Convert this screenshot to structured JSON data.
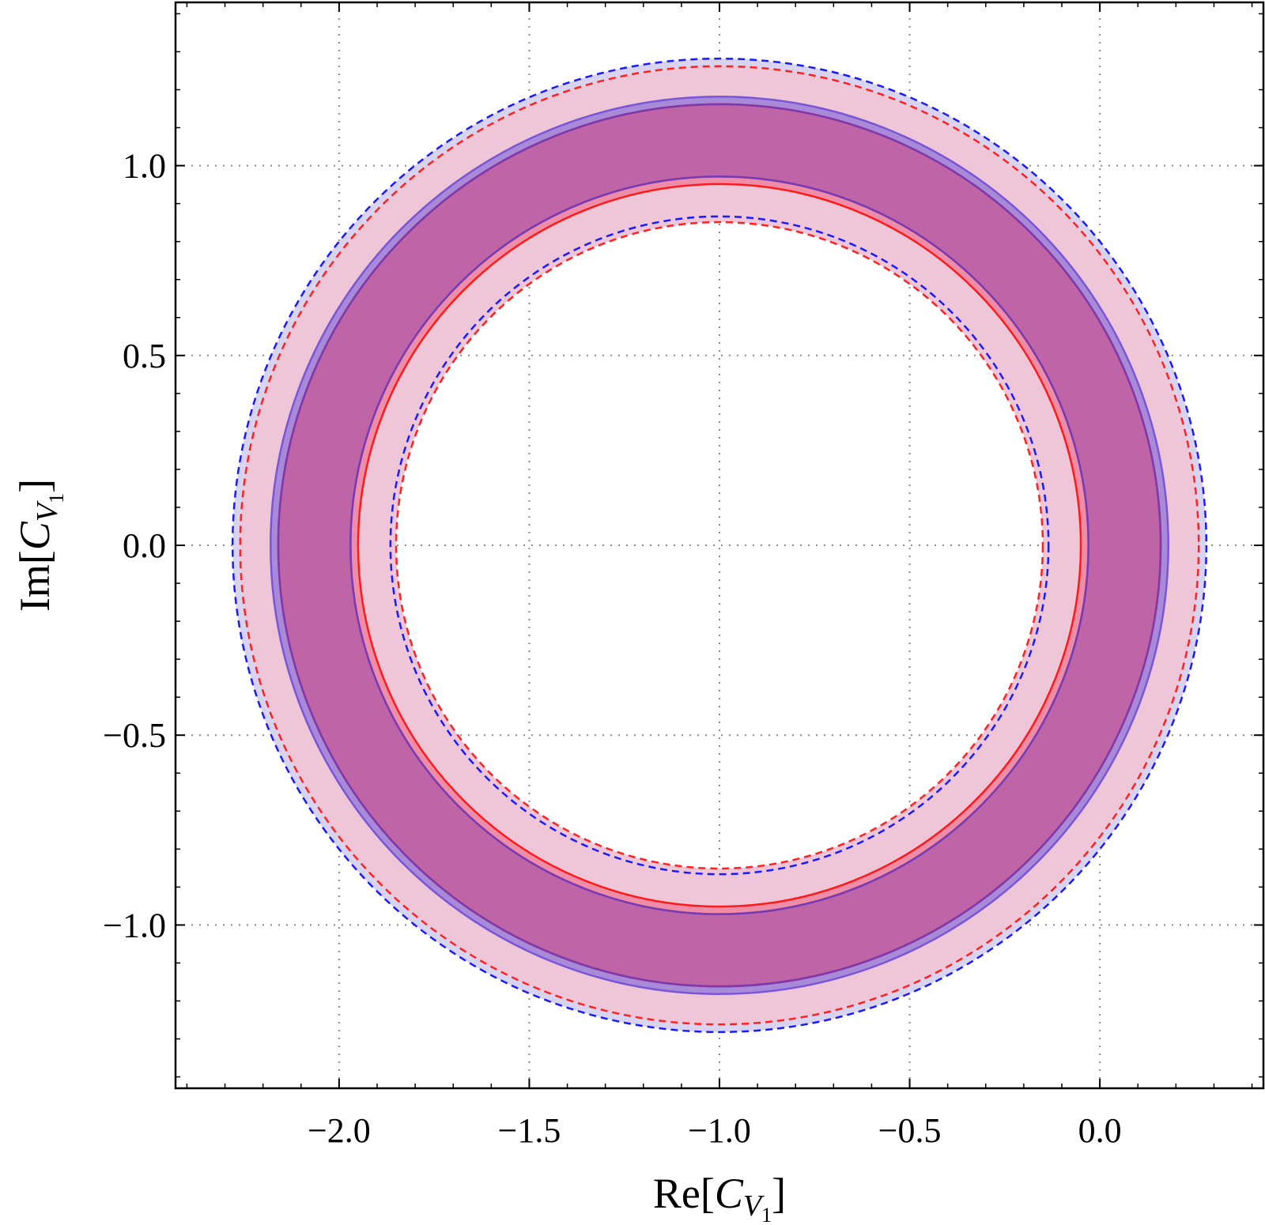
{
  "chart_data": {
    "type": "contour",
    "xlabel": {
      "prefix": "Re[",
      "symbol": "C",
      "sub": "V",
      "subsub": "1",
      "suffix": "]"
    },
    "ylabel": {
      "prefix": "Im[",
      "symbol": "C",
      "sub": "V",
      "subsub": "1",
      "suffix": "]"
    },
    "xlim": [
      -2.43,
      0.43
    ],
    "ylim": [
      -1.43,
      1.43
    ],
    "x_ticks": [
      -2.0,
      -1.5,
      -1.0,
      -0.5,
      0.0
    ],
    "y_ticks": [
      -1.0,
      -0.5,
      0.0,
      0.5,
      1.0
    ],
    "x_tick_labels": [
      "−2.0",
      "−1.5",
      "−1.0",
      "−0.5",
      "0.0"
    ],
    "y_tick_labels": [
      "−1.0",
      "−0.5",
      "0.0",
      "0.5",
      "1.0"
    ],
    "grid": true,
    "center": [
      -1.0,
      0.0
    ],
    "regions": [
      {
        "id": "blue-2sigma",
        "inner_radius": 0.865,
        "outer_radius": 1.28,
        "fill": "#d8d4f0",
        "stroke": "#1a1aff",
        "dashed": true
      },
      {
        "id": "red-2sigma",
        "inner_radius": 0.85,
        "outer_radius": 1.26,
        "fill": "#eec6d8",
        "stroke": "#ff2020",
        "dashed": true
      },
      {
        "id": "blue-1sigma",
        "inner_radius": 0.97,
        "outer_radius": 1.18,
        "fill": "#a88ad8",
        "stroke": "#7a55d8",
        "dashed": false
      },
      {
        "id": "red-1sigma",
        "inner_radius": 0.95,
        "outer_radius": 1.16,
        "fill": "#ef8ca8",
        "stroke": "#ff1a1a",
        "dashed": false
      },
      {
        "id": "overlap-1sigma",
        "inner_radius": 0.97,
        "outer_radius": 1.16,
        "fill": "#bf64a6",
        "stroke": "#7a3ab0",
        "dashed": false
      }
    ]
  }
}
